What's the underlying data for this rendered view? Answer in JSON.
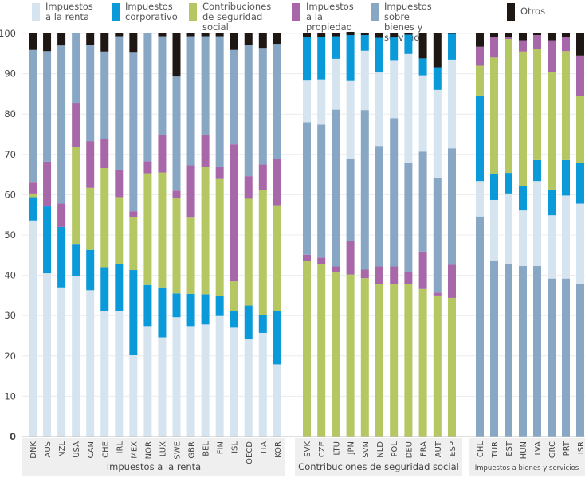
{
  "legend": [
    {
      "key": "pit",
      "label": "Impuestos\na la renta",
      "color": "#d6e4ef"
    },
    {
      "key": "cit",
      "label": "Impuestos\ncorporativo",
      "color": "#0b9ad9"
    },
    {
      "key": "ssc",
      "label": "Contribuciones\nde seguridad social",
      "color": "#b4c762"
    },
    {
      "key": "prop",
      "label": "Impuestos\na la propiedad",
      "color": "#a867a8"
    },
    {
      "key": "gs",
      "label": "Impuestos sobre\nbienes y servicios",
      "color": "#87a7c4"
    },
    {
      "key": "other",
      "label": "Otros",
      "color": "#1e1714"
    }
  ],
  "chart_data": {
    "type": "bar",
    "stacked": true,
    "title": "",
    "xlabel": "",
    "ylabel": "",
    "ylim": [
      0,
      100
    ],
    "yticks": [
      0,
      10,
      20,
      30,
      40,
      50,
      60,
      70,
      80,
      90,
      100
    ],
    "grid": true,
    "legend_position": "top",
    "series_names": {
      "pit": "Impuestos a la renta",
      "cit": "Impuestos corporativo",
      "ssc": "Contribuciones de seguridad social",
      "prop": "Impuestos a la propiedad",
      "gs": "Impuestos sobre bienes y servicios",
      "other": "Otros"
    },
    "groups": [
      {
        "label": "Impuestos a la renta",
        "stack_order": [
          "pit",
          "cit",
          "ssc",
          "prop",
          "gs",
          "other"
        ],
        "bars": [
          {
            "category": "DNK",
            "pit": 53.6,
            "cit": 5.8,
            "ssc": 0.9,
            "prop": 2.7,
            "gs": 32.9,
            "other": 4.1
          },
          {
            "category": "AUS",
            "pit": 40.5,
            "cit": 16.6,
            "ssc": 0.0,
            "prop": 11.1,
            "gs": 27.4,
            "other": 4.4
          },
          {
            "category": "NZL",
            "pit": 37.0,
            "cit": 15.0,
            "ssc": 0.0,
            "prop": 5.8,
            "gs": 39.2,
            "other": 3.0
          },
          {
            "category": "USA",
            "pit": 39.8,
            "cit": 8.0,
            "ssc": 24.1,
            "prop": 10.9,
            "gs": 17.2,
            "other": 0.0
          },
          {
            "category": "CAN",
            "pit": 36.3,
            "cit": 10.0,
            "ssc": 15.4,
            "prop": 11.6,
            "gs": 23.8,
            "other": 2.9
          },
          {
            "category": "CHE",
            "pit": 31.1,
            "cit": 10.9,
            "ssc": 24.6,
            "prop": 7.2,
            "gs": 21.7,
            "other": 4.5
          },
          {
            "category": "IRL",
            "pit": 31.1,
            "cit": 11.6,
            "ssc": 16.7,
            "prop": 6.7,
            "gs": 33.2,
            "other": 0.7
          },
          {
            "category": "MEX",
            "pit": 20.2,
            "cit": 21.1,
            "ssc": 13.1,
            "prop": 1.5,
            "gs": 39.5,
            "other": 4.6
          },
          {
            "category": "NOR",
            "pit": 27.4,
            "cit": 10.2,
            "ssc": 27.7,
            "prop": 3.0,
            "gs": 31.7,
            "other": 0.0
          },
          {
            "category": "LUX",
            "pit": 24.6,
            "cit": 12.4,
            "ssc": 28.5,
            "prop": 9.3,
            "gs": 24.5,
            "other": 0.7
          },
          {
            "category": "SWE",
            "pit": 29.6,
            "cit": 5.9,
            "ssc": 23.6,
            "prop": 1.9,
            "gs": 28.3,
            "other": 10.7
          },
          {
            "category": "GBR",
            "pit": 27.4,
            "cit": 8.0,
            "ssc": 18.9,
            "prop": 13.0,
            "gs": 32.0,
            "other": 0.7
          },
          {
            "category": "BEL",
            "pit": 27.8,
            "cit": 7.5,
            "ssc": 31.7,
            "prop": 7.7,
            "gs": 24.6,
            "other": 0.7
          },
          {
            "category": "FIN",
            "pit": 29.9,
            "cit": 4.9,
            "ssc": 29.1,
            "prop": 2.9,
            "gs": 32.5,
            "other": 0.7
          },
          {
            "category": "ISL",
            "pit": 27.0,
            "cit": 4.1,
            "ssc": 7.4,
            "prop": 34.0,
            "gs": 23.4,
            "other": 4.1
          },
          {
            "category": "OECD",
            "pit": 24.1,
            "cit": 8.4,
            "ssc": 26.5,
            "prop": 5.6,
            "gs": 32.5,
            "other": 2.9
          },
          {
            "category": "ITA",
            "pit": 25.7,
            "cit": 4.5,
            "ssc": 30.9,
            "prop": 6.4,
            "gs": 28.9,
            "other": 3.6
          },
          {
            "category": "KOR",
            "pit": 17.9,
            "cit": 13.3,
            "ssc": 26.2,
            "prop": 11.5,
            "gs": 28.5,
            "other": 2.6
          }
        ]
      },
      {
        "label": "Contribuciones de seguridad social",
        "stack_order": [
          "ssc",
          "prop",
          "gs",
          "pit",
          "cit",
          "other"
        ],
        "bars": [
          {
            "category": "SVK",
            "ssc": 43.6,
            "prop": 1.5,
            "gs": 32.9,
            "pit": 10.3,
            "cit": 10.9,
            "other": 1.0
          },
          {
            "category": "CZE",
            "ssc": 42.8,
            "prop": 1.6,
            "gs": 33.0,
            "pit": 11.2,
            "cit": 10.5,
            "other": 0.9
          },
          {
            "category": "LTU",
            "ssc": 40.8,
            "prop": 1.4,
            "gs": 38.9,
            "pit": 12.6,
            "cit": 5.6,
            "other": 0.7
          },
          {
            "category": "JPN",
            "ssc": 40.2,
            "prop": 8.4,
            "gs": 20.3,
            "pit": 19.3,
            "cit": 11.4,
            "other": 0.8
          },
          {
            "category": "SVN",
            "ssc": 39.3,
            "prop": 2.1,
            "gs": 39.6,
            "pit": 14.7,
            "cit": 3.9,
            "other": 0.4
          },
          {
            "category": "NLD",
            "ssc": 37.8,
            "prop": 4.4,
            "gs": 29.9,
            "pit": 18.2,
            "cit": 8.6,
            "other": 1.1
          },
          {
            "category": "POL",
            "ssc": 37.8,
            "prop": 4.4,
            "gs": 36.8,
            "pit": 14.4,
            "cit": 5.6,
            "other": 1.0
          },
          {
            "category": "DEU",
            "ssc": 37.8,
            "prop": 3.0,
            "gs": 27.0,
            "pit": 27.1,
            "cit": 4.8,
            "other": 0.3
          },
          {
            "category": "FRA",
            "ssc": 36.6,
            "prop": 9.3,
            "gs": 24.8,
            "pit": 18.9,
            "cit": 4.2,
            "other": 6.2
          },
          {
            "category": "AUT",
            "ssc": 35.0,
            "prop": 0.7,
            "gs": 28.4,
            "pit": 21.9,
            "cit": 5.6,
            "other": 8.4
          },
          {
            "category": "ESP",
            "ssc": 34.4,
            "prop": 8.2,
            "gs": 28.9,
            "pit": 22.0,
            "cit": 6.4,
            "other": 0.1
          }
        ]
      },
      {
        "label": "Impuestos a bienes y servicios",
        "stack_order": [
          "gs",
          "pit",
          "cit",
          "ssc",
          "prop",
          "other"
        ],
        "bars": [
          {
            "category": "CHL",
            "gs": 54.6,
            "pit": 8.8,
            "cit": 21.2,
            "ssc": 7.4,
            "prop": 4.7,
            "other": 3.3
          },
          {
            "category": "TUR",
            "gs": 43.6,
            "pit": 15.1,
            "cit": 6.4,
            "ssc": 28.9,
            "prop": 5.2,
            "other": 0.8
          },
          {
            "category": "EST",
            "gs": 42.9,
            "pit": 17.4,
            "cit": 5.1,
            "ssc": 33.2,
            "prop": 0.4,
            "other": 1.0
          },
          {
            "category": "HUN",
            "gs": 42.3,
            "pit": 13.8,
            "cit": 6.0,
            "ssc": 33.4,
            "prop": 2.8,
            "other": 1.7
          },
          {
            "category": "LVA",
            "gs": 42.3,
            "pit": 21.1,
            "cit": 5.2,
            "ssc": 27.6,
            "prop": 3.4,
            "other": 0.4
          },
          {
            "category": "GRC",
            "gs": 39.2,
            "pit": 15.7,
            "cit": 6.4,
            "ssc": 29.1,
            "prop": 7.9,
            "other": 1.7
          },
          {
            "category": "PRT",
            "gs": 39.2,
            "pit": 20.6,
            "cit": 8.8,
            "ssc": 27.0,
            "prop": 3.4,
            "other": 1.0
          },
          {
            "category": "ISR",
            "gs": 37.8,
            "pit": 20.0,
            "cit": 10.0,
            "ssc": 16.6,
            "prop": 10.1,
            "other": 5.5
          }
        ]
      }
    ]
  }
}
